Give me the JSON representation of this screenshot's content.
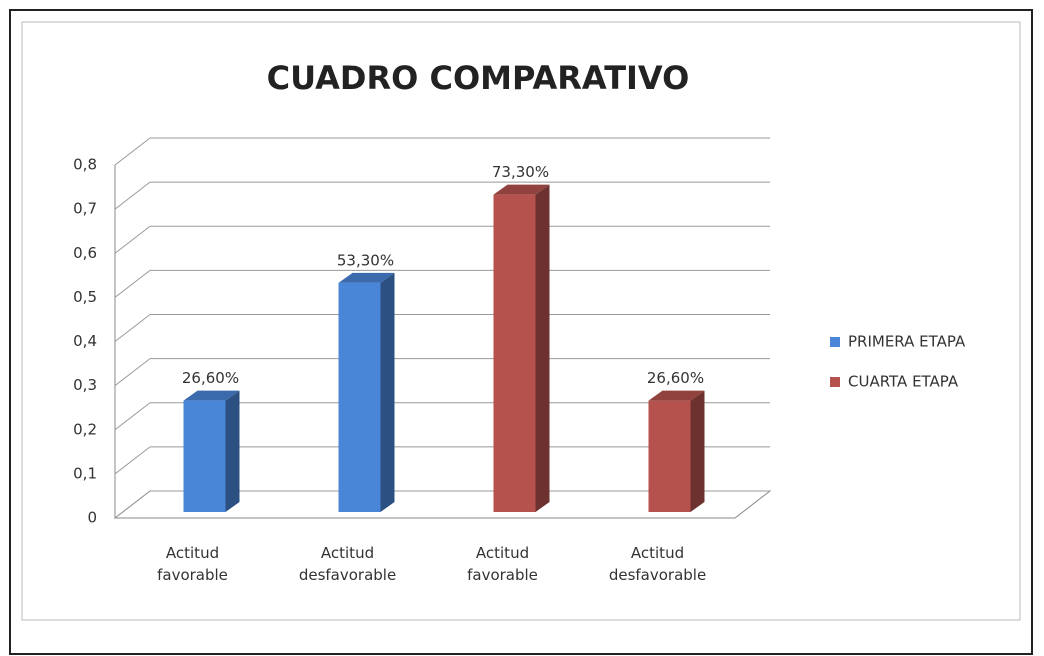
{
  "chart_data": {
    "type": "bar3d",
    "title": "CUADRO COMPARATIVO",
    "categories": [
      "Actitud favorable",
      "Actitud desfavorable",
      "Actitud favorable",
      "Actitud desfavorable"
    ],
    "series": [
      {
        "name": "PRIMERA ETAPA",
        "color": "#4a86d8",
        "values": [
          0.266,
          0.533,
          null,
          null
        ],
        "value_labels": [
          "26,60%",
          "53,30%",
          null,
          null
        ]
      },
      {
        "name": "CUARTA ETAPA",
        "color": "#b5524e",
        "values": [
          null,
          null,
          0.733,
          0.266
        ],
        "value_labels": [
          null,
          null,
          "73,30%",
          "26,60%"
        ]
      }
    ],
    "ylim": [
      0,
      0.8
    ],
    "yticks": [
      0,
      {
        "value": 0.1,
        "label": "0,1"
      },
      {
        "value": 0.2,
        "label": "0,2"
      },
      {
        "value": 0.3,
        "label": "0,3"
      },
      {
        "value": 0.4,
        "label": "0,4"
      },
      {
        "value": 0.5,
        "label": "0,5"
      },
      {
        "value": 0.6,
        "label": "0,6"
      },
      {
        "value": 0.7,
        "label": "0,7"
      },
      {
        "value": 0.8,
        "label": "0,8"
      }
    ],
    "grid": true,
    "legend": "right"
  }
}
